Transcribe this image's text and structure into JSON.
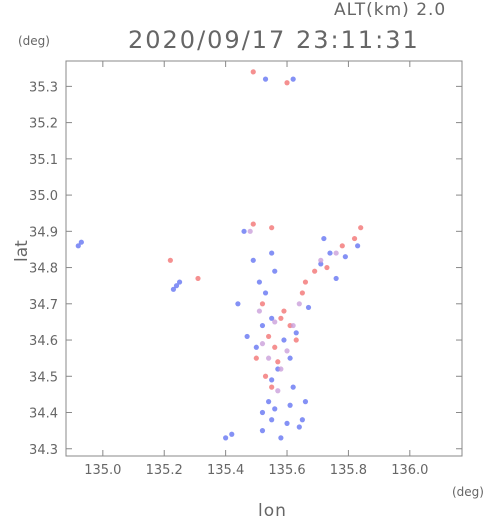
{
  "header": {
    "altitude_label": "ALT(km) 2.0",
    "timestamp": "2020/09/17 23:11:31"
  },
  "axes": {
    "x_unit": "(deg)",
    "y_unit": "(deg)",
    "x_label": "lon",
    "y_label": "lat"
  },
  "chart_data": {
    "type": "scatter",
    "title": "2020/09/17 23:11:31",
    "subtitle": "ALT(km) 2.0",
    "xlabel": "lon",
    "ylabel": "lat",
    "xlim": [
      134.88,
      136.17
    ],
    "ylim": [
      34.28,
      35.37
    ],
    "x_ticks": [
      "135.0",
      "135.2",
      "135.4",
      "135.6",
      "135.8",
      "136.0"
    ],
    "x_tick_values": [
      135.0,
      135.2,
      135.4,
      135.6,
      135.8,
      136.0
    ],
    "y_ticks": [
      "34.3",
      "34.4",
      "34.5",
      "34.6",
      "34.7",
      "34.8",
      "34.9",
      "35.0",
      "35.1",
      "35.2",
      "35.3"
    ],
    "y_tick_values": [
      34.3,
      34.4,
      34.5,
      34.6,
      34.7,
      34.8,
      34.9,
      35.0,
      35.1,
      35.2,
      35.3
    ],
    "grid": false,
    "colors": {
      "negative": "#5b6cf2",
      "positive": "#f26b6b",
      "mixed": "#c79ad8"
    },
    "series": [
      {
        "color": "#5b6cf2",
        "x": [
          134.93,
          134.92,
          135.24,
          135.25,
          135.23,
          135.56,
          135.61,
          135.65,
          135.72,
          135.55,
          135.46,
          135.49,
          135.51,
          135.56,
          135.53,
          135.52,
          135.55,
          135.59,
          135.63,
          135.67,
          135.61,
          135.57,
          135.5,
          135.55,
          135.62,
          135.66,
          135.54,
          135.52,
          135.55,
          135.6,
          135.42,
          135.52,
          135.58,
          135.64,
          135.4,
          135.53,
          135.62,
          135.74,
          135.79,
          135.83,
          135.76,
          135.71,
          135.44,
          135.47
        ],
        "y": [
          34.87,
          34.86,
          34.75,
          34.76,
          34.74,
          34.41,
          34.42,
          34.38,
          34.88,
          34.84,
          34.9,
          34.82,
          34.76,
          34.79,
          34.73,
          34.64,
          34.66,
          34.6,
          34.62,
          34.69,
          34.55,
          34.52,
          34.58,
          34.49,
          34.47,
          34.43,
          34.43,
          34.4,
          34.38,
          34.37,
          34.34,
          34.35,
          34.33,
          34.36,
          34.33,
          35.32,
          35.32,
          34.84,
          34.83,
          34.86,
          34.77,
          34.81,
          34.7,
          34.61
        ]
      },
      {
        "color": "#f26b6b",
        "x": [
          135.49,
          135.55,
          135.52,
          135.58,
          135.61,
          135.54,
          135.56,
          135.5,
          135.57,
          135.53,
          135.63,
          135.59,
          135.69,
          135.73,
          135.78,
          135.82,
          135.84,
          135.66,
          135.55,
          135.22,
          135.31,
          135.49,
          135.6,
          135.65
        ],
        "y": [
          34.92,
          34.91,
          34.7,
          34.66,
          34.64,
          34.61,
          34.58,
          34.55,
          34.54,
          34.5,
          34.6,
          34.68,
          34.79,
          34.8,
          34.86,
          34.88,
          34.91,
          34.76,
          34.47,
          34.82,
          34.77,
          35.34,
          35.31,
          34.73
        ]
      },
      {
        "color": "#c79ad8",
        "x": [
          135.51,
          135.56,
          135.6,
          135.54,
          135.58,
          135.52,
          135.57,
          135.62,
          135.71,
          135.76,
          135.48,
          135.64
        ],
        "y": [
          34.68,
          34.65,
          34.57,
          34.55,
          34.52,
          34.59,
          34.46,
          34.64,
          34.82,
          34.84,
          34.9,
          34.7
        ]
      }
    ]
  }
}
